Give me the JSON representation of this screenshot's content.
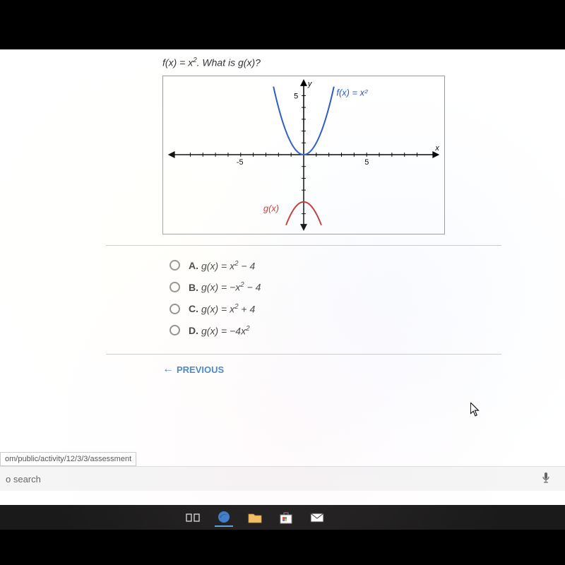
{
  "question": {
    "prompt_html": "<span class='fn'>f</span>(<span class='fn'>x</span>) = <span class='fn'>x</span><span class='sup'>2</span>. What is <span class='fn'>g</span>(<span class='fn'>x</span>)?"
  },
  "chart": {
    "type": "line",
    "xlim": [
      -10,
      10
    ],
    "ylim": [
      -6,
      6
    ],
    "xtick_labels": {
      "-5": "-5",
      "5": "5"
    },
    "ytick_labels": {
      "5": "5"
    },
    "tick_step": 1,
    "grid_color": "#999999",
    "axis_color": "#000000",
    "background_color": "#ffffff",
    "f_label": "f(x) = x²",
    "g_label": "g(x)",
    "f": {
      "color": "#2a5bbf",
      "width": 2,
      "points": "x,y pairs for y=x^2",
      "domain": [
        -2.45,
        2.45
      ]
    },
    "g": {
      "color": "#c03030",
      "width": 2,
      "points": "x,y pairs for y=-x^2-4",
      "domain": [
        -1.4,
        1.4
      ]
    },
    "label_fontsize": 12
  },
  "choices": [
    {
      "letter": "A.",
      "html": "<span class='fn'>g</span>(<span class='fn'>x</span>) = <span class='fn'>x</span><span class='sup'>2</span> − 4"
    },
    {
      "letter": "B.",
      "html": "<span class='fn'>g</span>(<span class='fn'>x</span>) = −<span class='fn'>x</span><span class='sup'>2</span> − 4"
    },
    {
      "letter": "C.",
      "html": "<span class='fn'>g</span>(<span class='fn'>x</span>) = <span class='fn'>x</span><span class='sup'>2</span> + 4"
    },
    {
      "letter": "D.",
      "html": "<span class='fn'>g</span>(<span class='fn'>x</span>) = −4<span class='fn'>x</span><span class='sup'>2</span>"
    }
  ],
  "nav": {
    "previous": "PREVIOUS"
  },
  "url_tooltip": "om/public/activity/12/3/3/assessment",
  "search_placeholder": "o search",
  "taskbar": {
    "items": [
      "task-view",
      "edge",
      "files",
      "store",
      "mail"
    ]
  }
}
